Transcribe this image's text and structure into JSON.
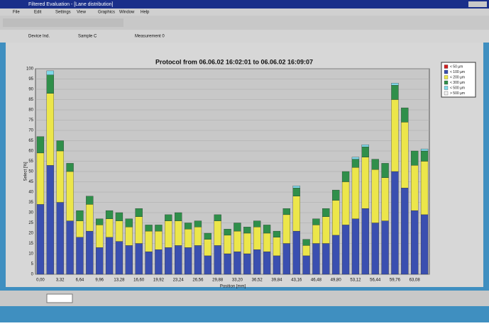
{
  "window": {
    "title": "Filtered Evaluation - [Lane distribution]",
    "menu": [
      "File",
      "Edit",
      "Settings",
      "View",
      "Graphics",
      "Window",
      "Help"
    ],
    "header": [
      "Device Ind.",
      "Sample C",
      "Measurement 0"
    ]
  },
  "chart_data": {
    "type": "stacked-bar",
    "title": "Protocol from 06.06.02 16:02:01 to 06.06.02 16:09:07",
    "x_label": "Position [mm]",
    "y_label": "Select [%]",
    "categories": [
      "0,00",
      null,
      "3,32",
      null,
      "6,64",
      null,
      "9,96",
      null,
      "13,28",
      null,
      "16,60",
      null,
      "19,92",
      null,
      "23,24",
      null,
      "26,56",
      null,
      "29,88",
      null,
      "33,20",
      null,
      "36,52",
      null,
      "39,84",
      null,
      "43,16",
      null,
      "46,48",
      null,
      "49,80",
      null,
      "53,12",
      null,
      "56,44",
      null,
      "59,76",
      null,
      "63,08",
      null
    ],
    "series": [
      {
        "name": "< 50 µm",
        "color": "#d02020",
        "values": [
          0,
          0,
          0,
          0,
          0,
          0,
          0,
          0,
          0,
          0,
          0,
          0,
          0,
          0,
          0,
          0,
          0,
          0,
          0,
          0,
          0,
          0,
          0,
          0,
          0,
          0,
          0,
          0,
          0,
          0,
          0,
          0,
          0,
          0,
          0,
          0,
          0,
          0,
          0,
          0
        ]
      },
      {
        "name": "< 100 µm",
        "color": "#3a4fb0",
        "values": [
          34,
          53,
          35,
          26,
          18,
          21,
          13,
          18,
          16,
          14,
          15,
          11,
          12,
          13,
          14,
          13,
          14,
          9,
          14,
          10,
          11,
          10,
          12,
          11,
          9,
          15,
          21,
          9,
          15,
          15,
          19,
          24,
          27,
          32,
          25,
          26,
          50,
          42,
          31,
          29
        ]
      },
      {
        "name": "< 200 µm",
        "color": "#ece64a",
        "values": [
          25,
          35,
          25,
          24,
          8,
          13,
          11,
          9,
          10,
          9,
          13,
          10,
          9,
          13,
          12,
          9,
          9,
          8,
          12,
          9,
          10,
          10,
          11,
          9,
          9,
          14,
          17,
          5,
          9,
          13,
          17,
          21,
          25,
          25,
          26,
          21,
          35,
          32,
          22,
          26
        ]
      },
      {
        "name": "< 300 µm",
        "color": "#2f8f4a",
        "values": [
          8,
          9,
          5,
          4,
          5,
          4,
          3,
          4,
          4,
          4,
          4,
          3,
          3,
          3,
          4,
          3,
          3,
          3,
          3,
          3,
          4,
          3,
          3,
          4,
          3,
          3,
          4,
          3,
          3,
          4,
          5,
          5,
          4,
          5,
          5,
          7,
          7,
          7,
          7,
          5
        ]
      },
      {
        "name": "< 500 µm",
        "color": "#7fd8e8",
        "values": [
          0,
          2,
          0,
          0,
          0,
          0,
          0,
          0,
          0,
          0,
          0,
          0,
          0,
          0,
          0,
          0,
          0,
          0,
          0,
          0,
          0,
          0,
          0,
          0,
          0,
          0,
          1,
          0,
          0,
          0,
          0,
          0,
          1,
          1,
          0,
          0,
          1,
          0,
          0,
          1
        ]
      },
      {
        "name": "> 500 µm",
        "color": "#f0f0f0",
        "values": [
          0,
          0,
          0,
          0,
          0,
          0,
          0,
          0,
          0,
          0,
          0,
          0,
          0,
          0,
          0,
          0,
          0,
          0,
          0,
          0,
          0,
          0,
          0,
          0,
          0,
          0,
          0,
          0,
          0,
          0,
          0,
          0,
          0,
          0,
          0,
          0,
          0,
          0,
          0,
          0
        ]
      }
    ],
    "ylim": [
      0,
      100
    ],
    "yticks": [
      0,
      5,
      10,
      15,
      20,
      25,
      30,
      35,
      40,
      45,
      50,
      55,
      60,
      65,
      70,
      75,
      80,
      85,
      90,
      95,
      100
    ],
    "grid": true,
    "legend": "top-right"
  }
}
